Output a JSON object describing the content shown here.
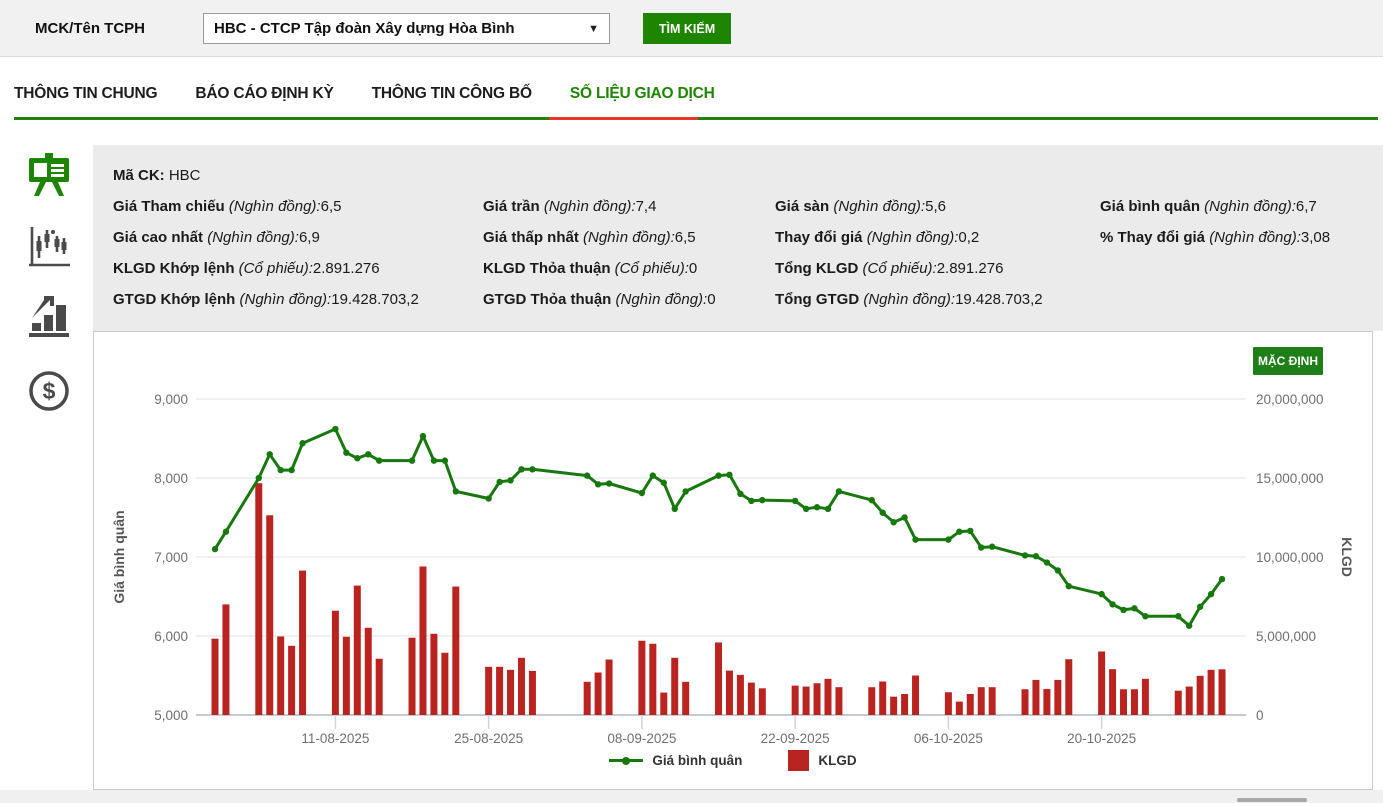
{
  "header": {
    "field_label": "MCK/Tên TCPH",
    "ticker_select": {
      "value": "HBC - CTCP Tập đoàn Xây dựng Hòa Bình"
    },
    "search_button": "TÌM KIẾM"
  },
  "tabs": [
    {
      "label": "THÔNG TIN CHUNG",
      "active": false
    },
    {
      "label": "BÁO CÁO ĐỊNH KỲ",
      "active": false
    },
    {
      "label": "THÔNG TIN CÔNG BỐ",
      "active": false
    },
    {
      "label": "SỐ LIỆU GIAO DỊCH",
      "active": true
    }
  ],
  "sidebar": {
    "icons": [
      "presentation-board",
      "candlestick-chart",
      "bar-chart-growth",
      "dollar-coin"
    ]
  },
  "info": {
    "ticker_label": "Mã CK:",
    "ticker_value": "HBC",
    "rows": [
      [
        {
          "label": "Giá Tham chiếu",
          "unit": "(Nghìn đồng):",
          "value": "6,5"
        },
        {
          "label": "Giá trần",
          "unit": "(Nghìn đồng):",
          "value": "7,4"
        },
        {
          "label": "Giá sàn",
          "unit": "(Nghìn đồng):",
          "value": "5,6"
        },
        {
          "label": "Giá bình quân",
          "unit": "(Nghìn đồng):",
          "value": "6,7"
        }
      ],
      [
        {
          "label": "Giá cao nhất",
          "unit": "(Nghìn đồng):",
          "value": "6,9"
        },
        {
          "label": "Giá thấp nhất",
          "unit": "(Nghìn đồng):",
          "value": "6,5"
        },
        {
          "label": "Thay đổi giá",
          "unit": "(Nghìn đồng):",
          "value": "0,2"
        },
        {
          "label": "% Thay đổi giá",
          "unit": "(Nghìn đồng):",
          "value": "3,08"
        }
      ],
      [
        {
          "label": "KLGD Khớp lệnh",
          "unit": "(Cổ phiếu):",
          "value": "2.891.276"
        },
        {
          "label": "KLGD Thỏa thuận",
          "unit": "(Cổ phiếu):",
          "value": "0"
        },
        {
          "label": "Tổng KLGD",
          "unit": "(Cổ phiếu):",
          "value": "2.891.276"
        }
      ],
      [
        {
          "label": "GTGD Khớp lệnh",
          "unit": "(Nghìn đồng):",
          "value": "19.428.703,2"
        },
        {
          "label": "GTGD Thỏa thuận",
          "unit": "(Nghìn đồng):",
          "value": "0"
        },
        {
          "label": "Tổng GTGD",
          "unit": "(Nghìn đồng):",
          "value": "19.428.703,2"
        }
      ]
    ]
  },
  "chart": {
    "default_button": "MẶC ĐỊNH"
  },
  "chart_data": {
    "type": "line+bar",
    "x": [
      "31-07-2025",
      "01-08-2025",
      "04-08-2025",
      "05-08-2025",
      "06-08-2025",
      "07-08-2025",
      "08-08-2025",
      "11-08-2025",
      "12-08-2025",
      "13-08-2025",
      "14-08-2025",
      "15-08-2025",
      "18-08-2025",
      "19-08-2025",
      "20-08-2025",
      "21-08-2025",
      "22-08-2025",
      "25-08-2025",
      "26-08-2025",
      "27-08-2025",
      "28-08-2025",
      "29-08-2025",
      "03-09-2025",
      "04-09-2025",
      "05-09-2025",
      "08-09-2025",
      "09-09-2025",
      "10-09-2025",
      "11-09-2025",
      "12-09-2025",
      "15-09-2025",
      "16-09-2025",
      "17-09-2025",
      "18-09-2025",
      "19-09-2025",
      "22-09-2025",
      "23-09-2025",
      "24-09-2025",
      "25-09-2025",
      "26-09-2025",
      "29-09-2025",
      "30-09-2025",
      "01-10-2025",
      "02-10-2025",
      "03-10-2025",
      "06-10-2025",
      "07-10-2025",
      "08-10-2025",
      "09-10-2025",
      "10-10-2025",
      "13-10-2025",
      "14-10-2025",
      "15-10-2025",
      "16-10-2025",
      "17-10-2025",
      "20-10-2025",
      "21-10-2025",
      "22-10-2025",
      "23-10-2025",
      "24-10-2025",
      "27-10-2025",
      "28-10-2025",
      "29-10-2025",
      "30-10-2025",
      "31-10-2025"
    ],
    "series": [
      {
        "name": "Giá bình quân",
        "type": "line",
        "axis": "left",
        "color": "#17780d",
        "values": [
          7100,
          7320,
          8000,
          8300,
          8100,
          8100,
          8440,
          8620,
          8320,
          8250,
          8300,
          8220,
          8220,
          8530,
          8220,
          8220,
          7830,
          7740,
          7950,
          7970,
          8110,
          8110,
          8030,
          7920,
          7930,
          7810,
          8030,
          7940,
          7610,
          7830,
          8030,
          8040,
          7800,
          7710,
          7720,
          7710,
          7610,
          7630,
          7610,
          7830,
          7720,
          7560,
          7440,
          7500,
          7220,
          7220,
          7320,
          7330,
          7120,
          7130,
          7020,
          7010,
          6930,
          6830,
          6630,
          6530,
          6400,
          6330,
          6350,
          6250,
          6250,
          6130,
          6370,
          6530,
          6720
        ]
      },
      {
        "name": "KLGD",
        "type": "bar",
        "axis": "right",
        "color": "#ba2420",
        "values": [
          4830000,
          7000000,
          14670000,
          12640000,
          4970000,
          4380000,
          9140000,
          6600000,
          4950000,
          8190000,
          5520000,
          3560000,
          4890000,
          9400000,
          5140000,
          3940000,
          8130000,
          3050000,
          3050000,
          2860000,
          3620000,
          2790000,
          2100000,
          2690000,
          3510000,
          4700000,
          4510000,
          1420000,
          3620000,
          2100000,
          4590000,
          2810000,
          2540000,
          2050000,
          1690000,
          1860000,
          1800000,
          2010000,
          2290000,
          1760000,
          1760000,
          2120000,
          1160000,
          1330000,
          2500000,
          1440000,
          850000,
          1330000,
          1760000,
          1760000,
          1630000,
          2220000,
          1650000,
          2220000,
          3530000,
          4020000,
          2900000,
          1630000,
          1630000,
          2290000,
          1540000,
          1800000,
          2480000,
          2860000,
          2891276
        ]
      }
    ],
    "left_axis": {
      "label": "Giá bình quân",
      "min": 5000,
      "max": 9000,
      "ticks": [
        {
          "v": 5000,
          "label": "5,000"
        },
        {
          "v": 6000,
          "label": "6,000"
        },
        {
          "v": 7000,
          "label": "7,000"
        },
        {
          "v": 8000,
          "label": "8,000"
        },
        {
          "v": 9000,
          "label": "9,000"
        }
      ]
    },
    "right_axis": {
      "label": "KLGD",
      "min": 0,
      "max": 20000000,
      "ticks": [
        {
          "v": 0,
          "label": "0"
        },
        {
          "v": 5000000,
          "label": "5,000,000"
        },
        {
          "v": 10000000,
          "label": "10,000,000"
        },
        {
          "v": 15000000,
          "label": "15,000,000"
        },
        {
          "v": 20000000,
          "label": "20,000,000"
        }
      ]
    },
    "x_ticks": [
      "11-08-2025",
      "25-08-2025",
      "08-09-2025",
      "22-09-2025",
      "06-10-2025",
      "20-10-2025"
    ],
    "legend_position": "bottom",
    "grid": true
  }
}
